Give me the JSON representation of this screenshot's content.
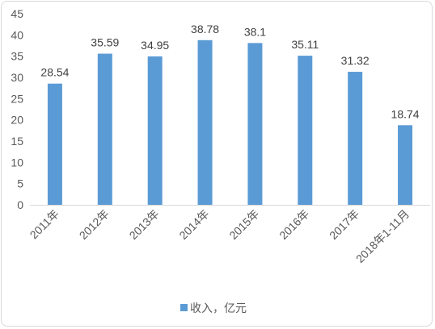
{
  "chart_data": {
    "type": "bar",
    "categories": [
      "2011年",
      "2012年",
      "2013年",
      "2014年",
      "2015年",
      "2016年",
      "2017年",
      "2018年1-11月"
    ],
    "series": [
      {
        "name": "收入，亿元",
        "values": [
          28.54,
          35.59,
          34.95,
          38.78,
          38.1,
          35.11,
          31.32,
          18.74
        ],
        "color": "#5b9bd5"
      }
    ],
    "data_labels": [
      "28.54",
      "35.59",
      "34.95",
      "38.78",
      "38.1",
      "35.11",
      "31.32",
      "18.74"
    ],
    "ylim": [
      0,
      45
    ],
    "yticks": [
      "0",
      "5",
      "10",
      "15",
      "20",
      "25",
      "30",
      "35",
      "40",
      "45"
    ],
    "grid": false,
    "legend_position": "bottom"
  }
}
